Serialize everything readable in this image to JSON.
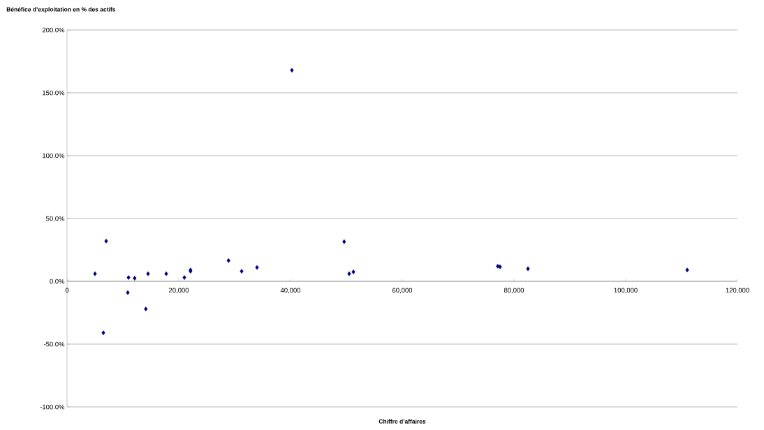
{
  "chart_data": {
    "type": "scatter",
    "ylabel": "Bénéfice d’exploitation en % des actifs",
    "xlabel": "Chiffre d’affaires",
    "x": [
      5000,
      6500,
      7000,
      10875,
      11000,
      12100,
      14100,
      14500,
      17750,
      21000,
      22100,
      22100,
      28900,
      31250,
      34000,
      40250,
      49600,
      50500,
      51250,
      77100,
      77500,
      82500,
      111000
    ],
    "values": [
      6,
      -41,
      32,
      -9,
      3,
      2.5,
      -22,
      6,
      6,
      3,
      9,
      8,
      16.5,
      8,
      11,
      168,
      31.5,
      6,
      7.5,
      12,
      11.5,
      10,
      9
    ],
    "color": "#000080",
    "marker": "diamond",
    "grid": "y",
    "xlim": [
      0,
      120000
    ],
    "ylim": [
      -100,
      200
    ],
    "xticks": [
      {
        "value": 0,
        "label": "0"
      },
      {
        "value": 20000,
        "label": "20,000"
      },
      {
        "value": 40000,
        "label": "40,000"
      },
      {
        "value": 60000,
        "label": "60,000"
      },
      {
        "value": 80000,
        "label": "80,000"
      },
      {
        "value": 100000,
        "label": "100,000"
      },
      {
        "value": 120000,
        "label": "120,000"
      }
    ],
    "yticks": [
      {
        "value": -100,
        "label": "-100.0%"
      },
      {
        "value": -50,
        "label": "-50.0%"
      },
      {
        "value": 0,
        "label": "0.0%"
      },
      {
        "value": 50,
        "label": "50.0%"
      },
      {
        "value": 100,
        "label": "100.0%"
      },
      {
        "value": 150,
        "label": "150.0%"
      },
      {
        "value": 200,
        "label": "200.0%"
      }
    ]
  }
}
